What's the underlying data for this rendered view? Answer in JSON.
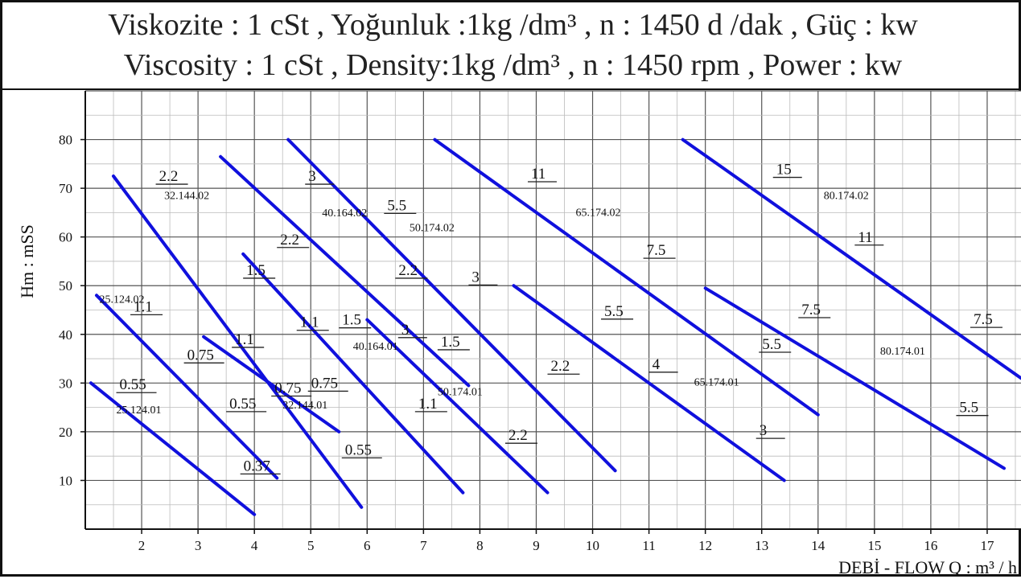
{
  "title_line1": "Viskozite : 1 cSt , Yoğunluk :1kg /dm³ , n : 1450 d /dak , Güç : kw",
  "title_line2": "Viscosity : 1 cSt , Density:1kg /dm³ , n : 1450 rpm , Power : kw",
  "chart_data": {
    "type": "line",
    "title": "Viskozite : 1 cSt , Yoğunluk :1kg /dm³ , n : 1450 d /dak , Güç : kw",
    "subtitle": "Viscosity : 1 cSt , Density:1kg /dm³ , n : 1450 rpm , Power : kw",
    "xlabel": "DEBİ - FLOW Q : m³ / h",
    "ylabel": "Hm : mSS",
    "xlim": [
      1,
      17.6
    ],
    "ylim": [
      0,
      90
    ],
    "x_ticks": [
      2,
      3,
      4,
      5,
      6,
      7,
      8,
      9,
      10,
      11,
      12,
      13,
      14,
      15,
      16,
      17
    ],
    "y_ticks": [
      10,
      20,
      30,
      40,
      50,
      60,
      70,
      80
    ],
    "grid": true,
    "line_color": "#1010dd",
    "series": [
      {
        "name": "25.124.01",
        "points": [
          [
            1.1,
            30
          ],
          [
            4.0,
            3
          ]
        ]
      },
      {
        "name": "25.124.02",
        "points": [
          [
            1.2,
            48
          ],
          [
            4.4,
            10.5
          ]
        ]
      },
      {
        "name": "32.144.01",
        "points": [
          [
            3.1,
            39.5
          ],
          [
            5.5,
            20
          ]
        ]
      },
      {
        "name": "32.144.02",
        "points": [
          [
            1.5,
            72.5
          ],
          [
            5.9,
            4.5
          ]
        ]
      },
      {
        "name": "40.164.01",
        "points": [
          [
            3.8,
            56.5
          ],
          [
            7.7,
            7.5
          ]
        ]
      },
      {
        "name": "40.164.02",
        "points": [
          [
            3.4,
            76.5
          ],
          [
            7.8,
            29.5
          ]
        ]
      },
      {
        "name": "50.174.01",
        "points": [
          [
            6.0,
            43
          ],
          [
            9.2,
            7.5
          ]
        ]
      },
      {
        "name": "50.174.02",
        "points": [
          [
            4.6,
            80
          ],
          [
            10.4,
            12
          ]
        ]
      },
      {
        "name": "65.174.01",
        "points": [
          [
            8.6,
            50
          ],
          [
            13.4,
            10
          ]
        ]
      },
      {
        "name": "65.174.02",
        "points": [
          [
            7.2,
            80
          ],
          [
            14.0,
            23.5
          ]
        ]
      },
      {
        "name": "80.174.01",
        "points": [
          [
            12.0,
            49.5
          ],
          [
            17.3,
            12.5
          ]
        ]
      },
      {
        "name": "80.174.02",
        "points": [
          [
            11.6,
            80
          ],
          [
            17.6,
            31
          ]
        ]
      }
    ],
    "annotations": [
      {
        "text": "0.55",
        "x": 1.55,
        "y": 28.2,
        "kind": "power"
      },
      {
        "text": "0.37",
        "x": 3.75,
        "y": 11.5,
        "kind": "power"
      },
      {
        "text": "1.1",
        "x": 1.8,
        "y": 44.2,
        "kind": "power"
      },
      {
        "text": "0.75",
        "x": 2.75,
        "y": 34.3,
        "kind": "power"
      },
      {
        "text": "0.55",
        "x": 3.5,
        "y": 24.3,
        "kind": "power"
      },
      {
        "text": "1.1",
        "x": 3.6,
        "y": 37.5,
        "kind": "power"
      },
      {
        "text": "0.75",
        "x": 4.3,
        "y": 27.5,
        "kind": "power"
      },
      {
        "text": "0.75",
        "x": 4.95,
        "y": 28.5,
        "kind": "power"
      },
      {
        "text": "2.2",
        "x": 2.25,
        "y": 71,
        "kind": "power"
      },
      {
        "text": "1.5",
        "x": 3.8,
        "y": 51.7,
        "kind": "power"
      },
      {
        "text": "0.55",
        "x": 5.55,
        "y": 14.8,
        "kind": "power"
      },
      {
        "text": "2.2",
        "x": 4.4,
        "y": 58,
        "kind": "power"
      },
      {
        "text": "1.1",
        "x": 4.75,
        "y": 41,
        "kind": "power"
      },
      {
        "text": "1.1",
        "x": 6.85,
        "y": 24.3,
        "kind": "power"
      },
      {
        "text": "3",
        "x": 4.9,
        "y": 71,
        "kind": "power"
      },
      {
        "text": "1.5",
        "x": 5.5,
        "y": 41.5,
        "kind": "power"
      },
      {
        "text": "2.2",
        "x": 6.5,
        "y": 51.7,
        "kind": "power"
      },
      {
        "text": "1.5",
        "x": 7.25,
        "y": 37,
        "kind": "power"
      },
      {
        "text": "3",
        "x": 6.55,
        "y": 39.5,
        "kind": "power"
      },
      {
        "text": "2.2",
        "x": 8.45,
        "y": 17.8,
        "kind": "power"
      },
      {
        "text": "5.5",
        "x": 6.3,
        "y": 65,
        "kind": "power"
      },
      {
        "text": "3",
        "x": 7.8,
        "y": 50.3,
        "kind": "power"
      },
      {
        "text": "2.2",
        "x": 9.2,
        "y": 32,
        "kind": "power"
      },
      {
        "text": "11",
        "x": 8.85,
        "y": 71.5,
        "kind": "power"
      },
      {
        "text": "7.5",
        "x": 10.9,
        "y": 55.8,
        "kind": "power"
      },
      {
        "text": "5.5",
        "x": 10.15,
        "y": 43.3,
        "kind": "power"
      },
      {
        "text": "4",
        "x": 11.0,
        "y": 32.4,
        "kind": "power"
      },
      {
        "text": "3",
        "x": 12.9,
        "y": 18.8,
        "kind": "power"
      },
      {
        "text": "5.5",
        "x": 12.95,
        "y": 36.5,
        "kind": "power"
      },
      {
        "text": "15",
        "x": 13.2,
        "y": 72.4,
        "kind": "power"
      },
      {
        "text": "11",
        "x": 14.65,
        "y": 58.5,
        "kind": "power"
      },
      {
        "text": "7.5",
        "x": 13.65,
        "y": 43.6,
        "kind": "power"
      },
      {
        "text": "7.5",
        "x": 16.7,
        "y": 41.6,
        "kind": "power"
      },
      {
        "text": "5.5",
        "x": 16.45,
        "y": 23.5,
        "kind": "power"
      },
      {
        "text": "25.124.01",
        "x": 1.55,
        "y": 23.8,
        "kind": "model"
      },
      {
        "text": "25.124.02",
        "x": 1.25,
        "y": 46.5,
        "kind": "model"
      },
      {
        "text": "32.144.01",
        "x": 4.5,
        "y": 24.8,
        "kind": "model"
      },
      {
        "text": "32.144.02",
        "x": 2.4,
        "y": 67.8,
        "kind": "model"
      },
      {
        "text": "40.164.01",
        "x": 5.75,
        "y": 36.8,
        "kind": "model"
      },
      {
        "text": "40.164.02",
        "x": 5.2,
        "y": 64.2,
        "kind": "model"
      },
      {
        "text": "50.174.01",
        "x": 7.25,
        "y": 27.5,
        "kind": "model"
      },
      {
        "text": "50.174.02",
        "x": 6.75,
        "y": 61.2,
        "kind": "model"
      },
      {
        "text": "65.174.01",
        "x": 11.8,
        "y": 29.5,
        "kind": "model"
      },
      {
        "text": "65.174.02",
        "x": 9.7,
        "y": 64.3,
        "kind": "model"
      },
      {
        "text": "80.174.01",
        "x": 15.1,
        "y": 35.8,
        "kind": "model"
      },
      {
        "text": "80.174.02",
        "x": 14.1,
        "y": 67.8,
        "kind": "model"
      }
    ]
  }
}
